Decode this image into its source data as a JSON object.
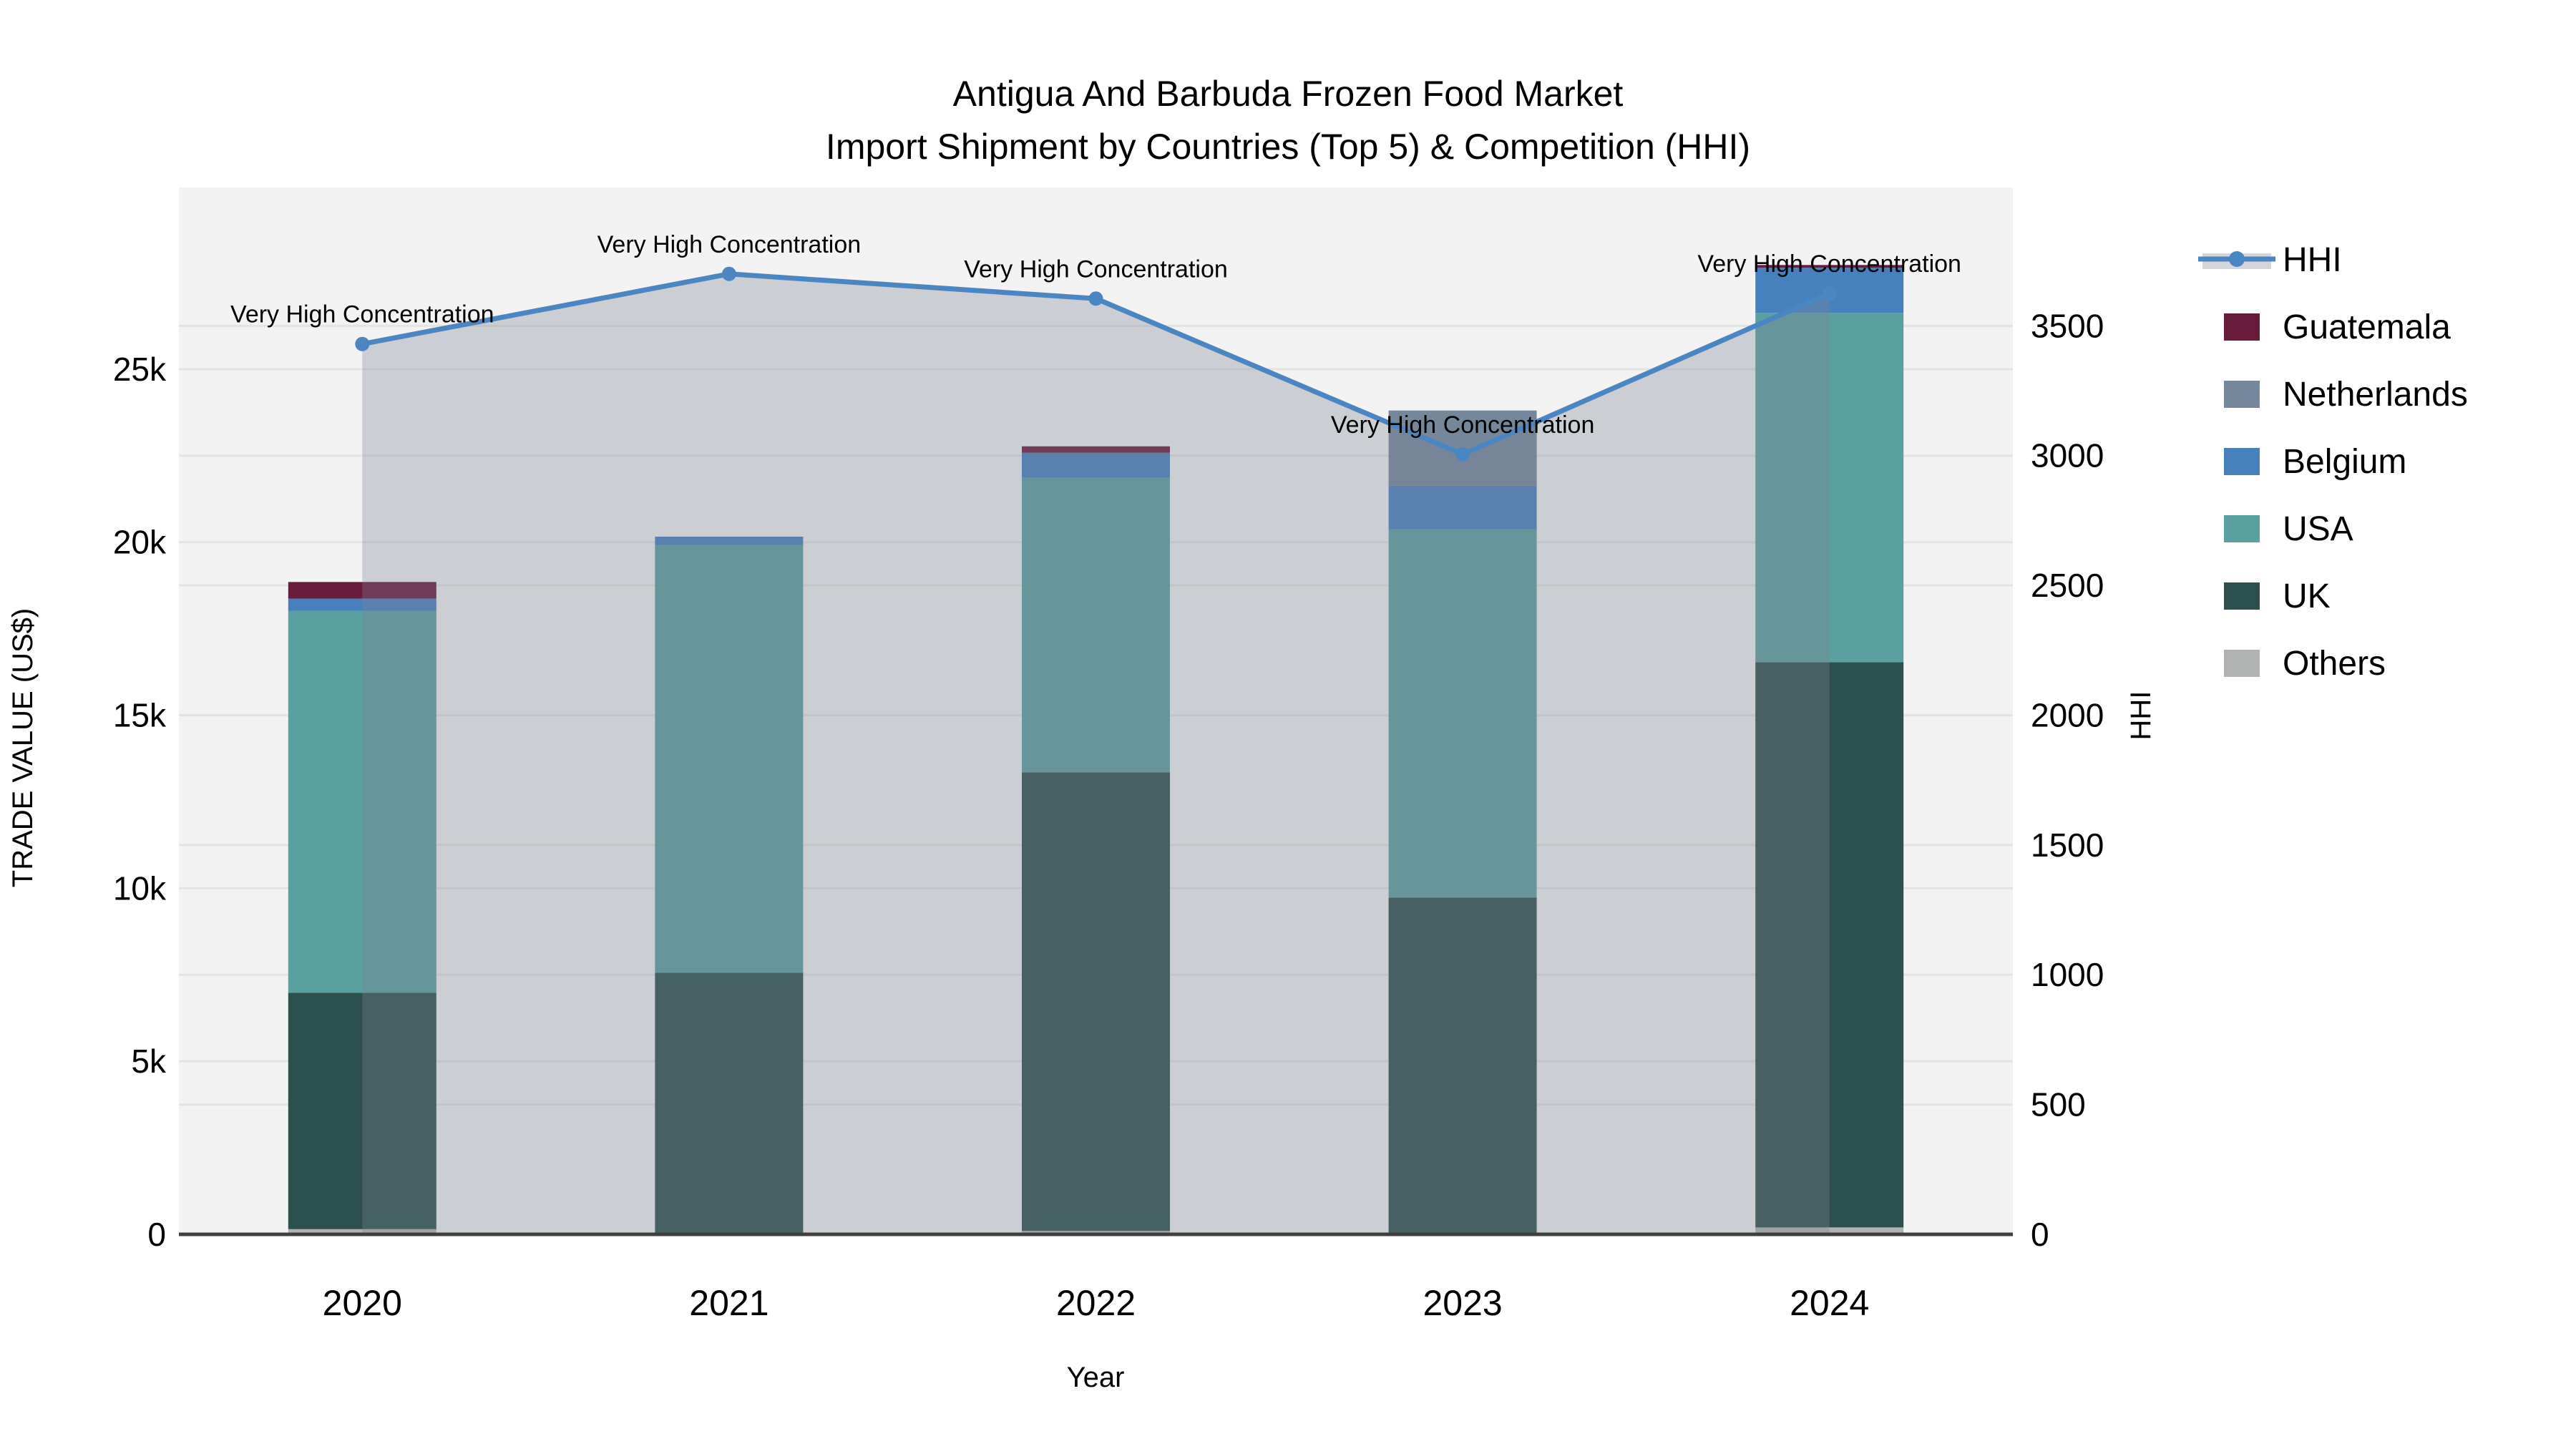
{
  "title": {
    "line1": "Antigua And Barbuda Frozen Food Market",
    "line2": "Import Shipment by Countries (Top 5) & Competition (HHI)"
  },
  "chart_data": {
    "type": "bar+line",
    "title": "Antigua And Barbuda Frozen Food Market Import Shipment by Countries (Top 5) & Competition (HHI)",
    "xlabel": "Year",
    "ylabel_left": "TRADE VALUE (US$)",
    "ylabel_right": "HHI",
    "categories": [
      "2020",
      "2021",
      "2022",
      "2023",
      "2024"
    ],
    "bar_stack_order_bottom_to_top": [
      "Others",
      "UK",
      "USA",
      "Belgium",
      "Netherlands",
      "Guatemala"
    ],
    "bar_series": [
      {
        "name": "Others",
        "color": "#b0b3b1",
        "values": [
          150,
          0,
          100,
          0,
          200
        ]
      },
      {
        "name": "UK",
        "color": "#2d4f4d",
        "values": [
          6830,
          7560,
          13250,
          9730,
          16330
        ]
      },
      {
        "name": "USA",
        "color": "#5ba0a1",
        "values": [
          11040,
          12360,
          8510,
          10640,
          10100
        ]
      },
      {
        "name": "Belgium",
        "color": "#4681be",
        "values": [
          350,
          240,
          725,
          1260,
          1300
        ]
      },
      {
        "name": "Netherlands",
        "color": "#75879b",
        "values": [
          0,
          0,
          0,
          2175,
          0
        ]
      },
      {
        "name": "Guatemala",
        "color": "#691b3b",
        "values": [
          480,
          0,
          185,
          0,
          80
        ]
      }
    ],
    "bar_totals": [
      18850,
      20160,
      22770,
      23805,
      28010
    ],
    "line_series": {
      "name": "HHI",
      "axis": "right",
      "color": "#4a86c2",
      "area_fill": "rgba(125,130,146,0.33)",
      "values": [
        3430,
        3700,
        3605,
        3005,
        3625
      ]
    },
    "annotations": [
      "Very High Concentration",
      "Very High Concentration",
      "Very High Concentration",
      "Very High Concentration",
      "Very High Concentration"
    ],
    "left_axis": {
      "tick_values": [
        0,
        5000,
        10000,
        15000,
        20000,
        25000
      ],
      "tick_labels": [
        "0",
        "5k",
        "10k",
        "15k",
        "20k",
        "25k"
      ],
      "range": [
        0,
        30250
      ]
    },
    "right_axis": {
      "tick_values": [
        0,
        500,
        1000,
        1500,
        2000,
        2500,
        3000,
        3500
      ],
      "tick_labels": [
        "0",
        "500",
        "1000",
        "1500",
        "2000",
        "2500",
        "3000",
        "3500"
      ],
      "range": [
        0,
        4033
      ]
    },
    "grid": true,
    "legend_position": "right",
    "legend": [
      {
        "name": "HHI",
        "type": "line",
        "color": "#4a86c2"
      },
      {
        "name": "Guatemala",
        "type": "swatch",
        "color": "#691b3b"
      },
      {
        "name": "Netherlands",
        "type": "swatch",
        "color": "#75879b"
      },
      {
        "name": "Belgium",
        "type": "swatch",
        "color": "#4681be"
      },
      {
        "name": "USA",
        "type": "swatch",
        "color": "#5ba0a1"
      },
      {
        "name": "UK",
        "type": "swatch",
        "color": "#2d4f4d"
      },
      {
        "name": "Others",
        "type": "swatch",
        "color": "#b0b3b1"
      }
    ]
  },
  "colors": {
    "background": "#ffffff",
    "plot_bg": "#f2f3f2",
    "grid": "#e3e5e5",
    "axis_line": "#3f3f3f",
    "text": "#000000"
  }
}
